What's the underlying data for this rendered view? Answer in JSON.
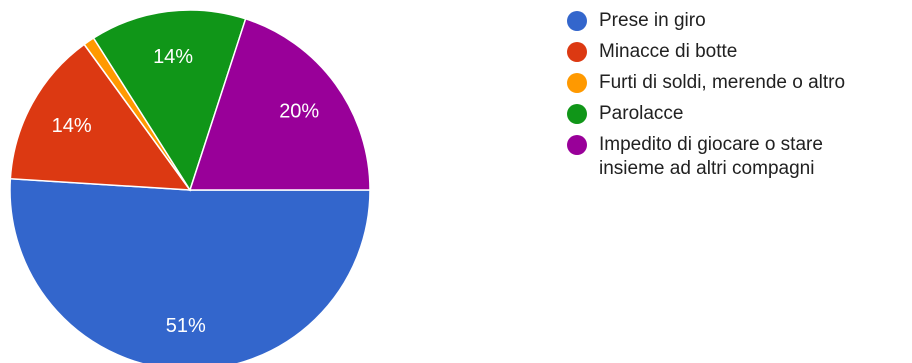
{
  "chart_data": {
    "type": "pie",
    "slices": [
      {
        "label": "Prese in giro",
        "value": 51,
        "display": "51%",
        "color": "#3366cc"
      },
      {
        "label": "Minacce di botte",
        "value": 14,
        "display": "14%",
        "color": "#dc3912"
      },
      {
        "label": "Furti di soldi, merende o altro",
        "value": 1,
        "display": "",
        "color": "#ff9900"
      },
      {
        "label": "Parolacce",
        "value": 14,
        "display": "14%",
        "color": "#109618"
      },
      {
        "label": "Impedito di giocare o stare\ninsieme ad altri compagni",
        "value": 20,
        "display": "20%",
        "color": "#990099"
      }
    ],
    "legend_position": "right"
  }
}
